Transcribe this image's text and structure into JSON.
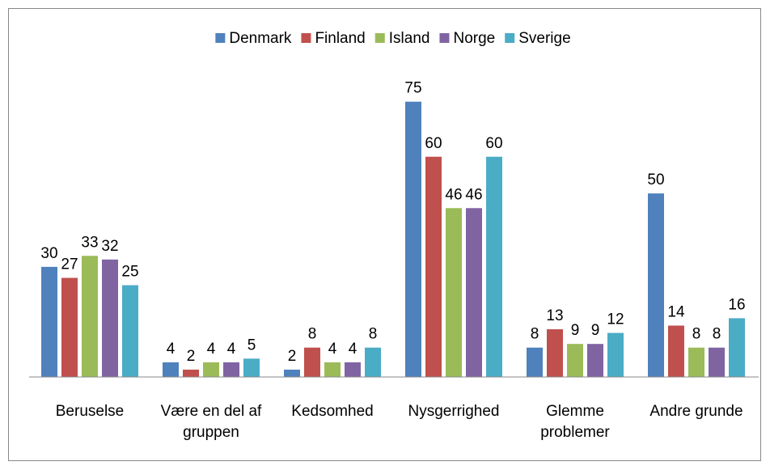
{
  "chart_data": {
    "type": "bar",
    "categories": [
      "Beruselse",
      "Være en del af gruppen",
      "Kedsomhed",
      "Nysgerrighed",
      "Glemme problemer",
      "Andre grunde"
    ],
    "series": [
      {
        "name": "Denmark",
        "color": "#4f81bd",
        "values": [
          30,
          4,
          2,
          75,
          8,
          50
        ]
      },
      {
        "name": "Finland",
        "color": "#c0504d",
        "values": [
          27,
          2,
          8,
          60,
          13,
          14
        ]
      },
      {
        "name": "Island",
        "color": "#9bbb59",
        "values": [
          33,
          4,
          4,
          46,
          9,
          8
        ]
      },
      {
        "name": "Norge",
        "color": "#8064a2",
        "values": [
          32,
          4,
          4,
          46,
          9,
          8
        ]
      },
      {
        "name": "Sverige",
        "color": "#4bacc6",
        "values": [
          25,
          5,
          8,
          60,
          12,
          16
        ]
      }
    ],
    "ylim": [
      0,
      80
    ],
    "legend": "top",
    "grid": false
  }
}
